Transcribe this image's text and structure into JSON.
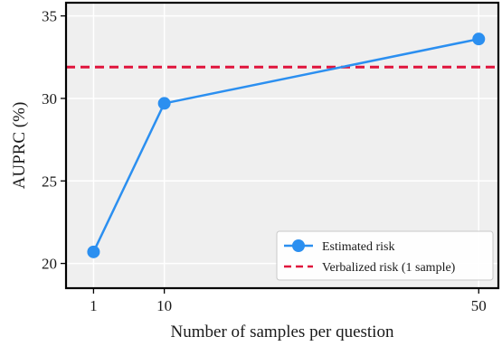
{
  "chart_data": {
    "type": "line",
    "title": "",
    "xlabel": "Number of samples per question",
    "ylabel": "AUPRC (%)",
    "x": [
      1,
      10,
      50
    ],
    "xticks": [
      1,
      10,
      50
    ],
    "xtick_labels": [
      "1",
      "10",
      "50"
    ],
    "xlim": [
      -2.5,
      52.5
    ],
    "yticks": [
      20,
      25,
      30,
      35
    ],
    "ytick_labels": [
      "20",
      "25",
      "30",
      "35"
    ],
    "ylim": [
      18.5,
      35.8
    ],
    "grid": true,
    "legend_position": "lower-right",
    "series": [
      {
        "name": "Estimated risk",
        "style": "solid-line-with-markers",
        "color": "#2b8ff0",
        "values": [
          20.7,
          29.7,
          33.6
        ]
      },
      {
        "name": "Verbalized risk (1 sample)",
        "style": "dashed-horizontal",
        "color": "#e0143c",
        "values": [
          31.9,
          31.9,
          31.9
        ]
      }
    ],
    "background_color": "#efefef"
  }
}
